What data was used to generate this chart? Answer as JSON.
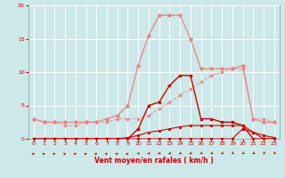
{
  "x": [
    0,
    1,
    2,
    3,
    4,
    5,
    6,
    7,
    8,
    9,
    10,
    11,
    12,
    13,
    14,
    15,
    16,
    17,
    18,
    19,
    20,
    21,
    22,
    23
  ],
  "line_rafales": [
    3.0,
    2.5,
    2.5,
    2.5,
    2.5,
    2.5,
    2.5,
    3.0,
    3.5,
    5.0,
    11.0,
    15.5,
    18.5,
    18.5,
    18.5,
    15.0,
    10.5,
    10.5,
    10.5,
    10.5,
    11.0,
    3.0,
    2.5,
    2.5
  ],
  "line_tendance": [
    3.0,
    2.5,
    2.5,
    2.0,
    2.0,
    2.5,
    2.5,
    2.5,
    3.0,
    3.0,
    3.0,
    3.5,
    4.5,
    5.5,
    6.5,
    7.5,
    8.5,
    9.5,
    10.0,
    10.5,
    10.5,
    3.0,
    3.0,
    2.5
  ],
  "line_moyen": [
    0.0,
    0.0,
    0.0,
    0.0,
    0.0,
    0.0,
    0.0,
    0.0,
    0.0,
    0.0,
    1.5,
    5.0,
    5.5,
    8.0,
    9.5,
    9.5,
    3.0,
    3.0,
    2.5,
    2.5,
    2.0,
    0.0,
    0.0,
    0.0
  ],
  "line_flat": [
    0.0,
    0.0,
    0.0,
    0.0,
    0.0,
    0.0,
    0.0,
    0.0,
    0.0,
    0.2,
    0.5,
    1.0,
    1.2,
    1.5,
    1.8,
    2.0,
    2.0,
    2.0,
    2.0,
    2.0,
    2.0,
    1.0,
    0.5,
    0.2
  ],
  "line_zero": [
    0.0,
    0.0,
    0.0,
    0.0,
    0.0,
    0.0,
    0.0,
    0.0,
    0.0,
    0.0,
    0.0,
    0.0,
    0.0,
    0.0,
    0.0,
    0.0,
    0.0,
    0.0,
    0.0,
    0.0,
    1.5,
    1.0,
    0.0,
    0.0
  ],
  "arrow_angles": [
    45,
    45,
    45,
    45,
    45,
    45,
    45,
    45,
    45,
    45,
    200,
    210,
    215,
    215,
    215,
    215,
    220,
    220,
    225,
    230,
    230,
    235,
    240,
    240
  ],
  "color_light": "#f08080",
  "color_dark": "#cc0000",
  "color_bg": "#cce8e8",
  "color_grid": "#b0d8d8",
  "xlabel": "Vent moyen/en rafales ( km/h )",
  "ylim": [
    0,
    20
  ],
  "xlim": [
    0,
    23
  ],
  "yticks": [
    0,
    5,
    10,
    15,
    20
  ]
}
